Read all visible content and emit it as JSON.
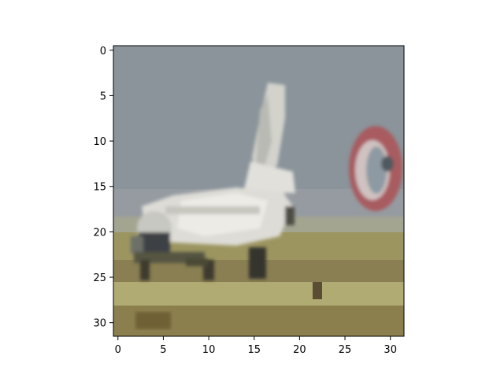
{
  "figure": {
    "x_ticks": [
      "0",
      "5",
      "10",
      "15",
      "20",
      "25",
      "30"
    ],
    "y_ticks": [
      "0",
      "5",
      "10",
      "15",
      "20",
      "25",
      "30"
    ]
  },
  "image": {
    "grid_size": 32,
    "subject": "white propeller airplane on grassy airfield with red-and-white ring",
    "colors": {
      "sky": "#8a949a",
      "sky_low": "#959ba0",
      "ground": "#9c9560",
      "ground_dark": "#7e7346",
      "plane_white": "#d9d9d3",
      "plane_shadow": "#3d4044",
      "ring_red": "#a85c60"
    }
  }
}
